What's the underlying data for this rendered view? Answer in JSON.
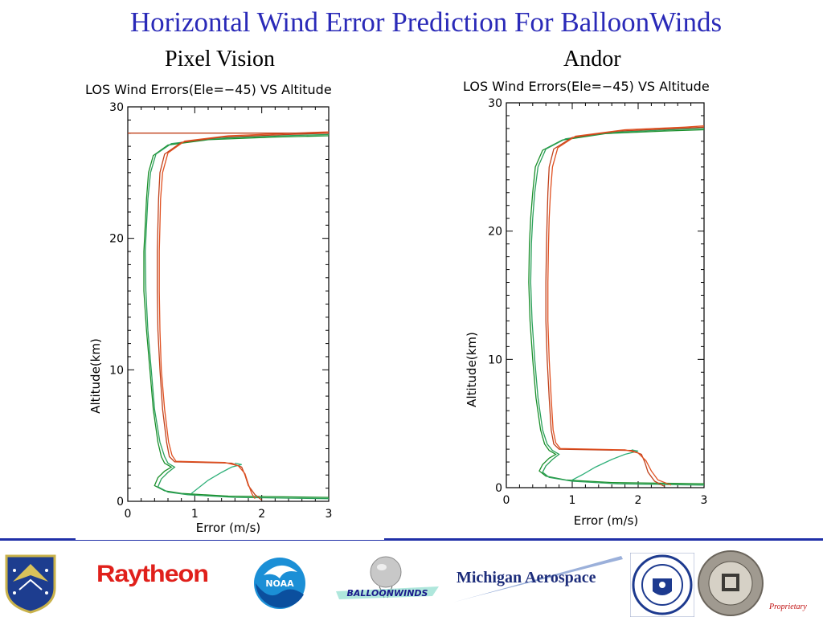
{
  "title": "Horizontal Wind Error Prediction For BalloonWinds",
  "panels": {
    "left_label": "Pixel Vision",
    "right_label": "Andor"
  },
  "chart_data": [
    {
      "type": "line",
      "title": "LOS Wind Errors(Ele=−45) VS Altitude",
      "xlabel": "Error (m/s)",
      "ylabel": "Altitude(km)",
      "xlim": [
        0,
        3
      ],
      "ylim": [
        0,
        30
      ],
      "xticks": [
        "0",
        "1",
        "2",
        "3"
      ],
      "yticks": [
        "0",
        "10",
        "20",
        "30"
      ],
      "grid": false,
      "series": [
        {
          "color": "#1a8f2a",
          "points": [
            [
              3.0,
              0.3
            ],
            [
              1.5,
              0.4
            ],
            [
              0.8,
              0.6
            ],
            [
              0.55,
              0.8
            ],
            [
              0.4,
              1.2
            ],
            [
              0.45,
              1.8
            ],
            [
              0.55,
              2.3
            ],
            [
              0.65,
              2.6
            ],
            [
              0.55,
              2.9
            ],
            [
              0.5,
              3.4
            ],
            [
              0.45,
              4.5
            ],
            [
              0.38,
              7
            ],
            [
              0.33,
              10
            ],
            [
              0.28,
              13
            ],
            [
              0.24,
              16
            ],
            [
              0.24,
              19
            ],
            [
              0.26,
              21
            ],
            [
              0.28,
              23
            ],
            [
              0.31,
              25
            ],
            [
              0.38,
              26.3
            ],
            [
              0.6,
              27.1
            ],
            [
              1.2,
              27.5
            ],
            [
              2.2,
              27.7
            ],
            [
              3.0,
              27.8
            ]
          ]
        },
        {
          "color": "#2aa05a",
          "points": [
            [
              3.0,
              0.2
            ],
            [
              1.6,
              0.3
            ],
            [
              0.9,
              0.5
            ],
            [
              0.6,
              0.7
            ],
            [
              0.45,
              1.1
            ],
            [
              0.5,
              1.7
            ],
            [
              0.6,
              2.2
            ],
            [
              0.7,
              2.6
            ],
            [
              0.6,
              2.9
            ],
            [
              0.55,
              3.4
            ],
            [
              0.48,
              4.5
            ],
            [
              0.4,
              7
            ],
            [
              0.35,
              10
            ],
            [
              0.3,
              13
            ],
            [
              0.27,
              16
            ],
            [
              0.26,
              19
            ],
            [
              0.28,
              21
            ],
            [
              0.3,
              23
            ],
            [
              0.34,
              25
            ],
            [
              0.42,
              26.4
            ],
            [
              0.65,
              27.2
            ],
            [
              1.3,
              27.6
            ],
            [
              2.3,
              27.8
            ],
            [
              3.0,
              27.9
            ]
          ]
        },
        {
          "color": "#30b07a",
          "points": [
            [
              0.95,
              0.6
            ],
            [
              1.05,
              1.0
            ],
            [
              1.2,
              1.6
            ],
            [
              1.4,
              2.2
            ],
            [
              1.55,
              2.6
            ],
            [
              1.7,
              2.8
            ],
            [
              1.6,
              2.9
            ]
          ]
        },
        {
          "color": "#c0401a",
          "points": [
            [
              2.0,
              0.1
            ],
            [
              1.9,
              0.5
            ],
            [
              1.8,
              1.2
            ],
            [
              1.75,
              2.0
            ],
            [
              1.7,
              2.6
            ],
            [
              1.55,
              2.9
            ],
            [
              0.7,
              3.0
            ],
            [
              0.62,
              3.4
            ],
            [
              0.58,
              4.5
            ],
            [
              0.52,
              7
            ],
            [
              0.48,
              10
            ],
            [
              0.45,
              13
            ],
            [
              0.44,
              16
            ],
            [
              0.44,
              19
            ],
            [
              0.45,
              21
            ],
            [
              0.46,
              23
            ],
            [
              0.48,
              25
            ],
            [
              0.55,
              26.4
            ],
            [
              0.8,
              27.3
            ],
            [
              1.4,
              27.7
            ],
            [
              2.4,
              27.9
            ],
            [
              3.0,
              28.0
            ]
          ]
        },
        {
          "color": "#e05020",
          "points": [
            [
              1.9,
              0.2
            ],
            [
              1.85,
              0.6
            ],
            [
              1.8,
              1.3
            ],
            [
              1.75,
              2.1
            ],
            [
              1.65,
              2.7
            ],
            [
              1.45,
              2.95
            ],
            [
              0.72,
              3.05
            ],
            [
              0.66,
              3.5
            ],
            [
              0.61,
              4.5
            ],
            [
              0.55,
              7
            ],
            [
              0.5,
              10
            ],
            [
              0.48,
              13
            ],
            [
              0.47,
              16
            ],
            [
              0.47,
              19
            ],
            [
              0.48,
              21
            ],
            [
              0.49,
              23
            ],
            [
              0.52,
              25
            ],
            [
              0.6,
              26.5
            ],
            [
              0.85,
              27.4
            ],
            [
              1.5,
              27.8
            ],
            [
              2.5,
              28.0
            ],
            [
              3.0,
              28.1
            ]
          ]
        },
        {
          "color": "#c0401a",
          "points": [
            [
              0.0,
              28.0
            ],
            [
              3.0,
              28.0
            ]
          ]
        }
      ]
    },
    {
      "type": "line",
      "title": "LOS Wind Errors(Ele=−45) VS Altitude",
      "xlabel": "Error (m/s)",
      "ylabel": "Altitude(km)",
      "xlim": [
        0,
        3
      ],
      "ylim": [
        0,
        30
      ],
      "xticks": [
        "0",
        "1",
        "2",
        "3"
      ],
      "yticks": [
        "0",
        "10",
        "20",
        "30"
      ],
      "grid": false,
      "series": [
        {
          "color": "#1a8f2a",
          "points": [
            [
              3.0,
              0.3
            ],
            [
              1.6,
              0.4
            ],
            [
              0.9,
              0.6
            ],
            [
              0.6,
              0.9
            ],
            [
              0.5,
              1.3
            ],
            [
              0.55,
              1.8
            ],
            [
              0.65,
              2.3
            ],
            [
              0.75,
              2.6
            ],
            [
              0.65,
              2.9
            ],
            [
              0.58,
              3.4
            ],
            [
              0.52,
              4.5
            ],
            [
              0.45,
              7
            ],
            [
              0.4,
              10
            ],
            [
              0.36,
              13
            ],
            [
              0.34,
              16
            ],
            [
              0.35,
              19
            ],
            [
              0.37,
              21
            ],
            [
              0.4,
              23
            ],
            [
              0.44,
              25
            ],
            [
              0.55,
              26.3
            ],
            [
              0.85,
              27.1
            ],
            [
              1.5,
              27.6
            ],
            [
              2.4,
              27.8
            ],
            [
              3.0,
              27.9
            ]
          ]
        },
        {
          "color": "#2aa05a",
          "points": [
            [
              3.0,
              0.2
            ],
            [
              1.7,
              0.3
            ],
            [
              1.0,
              0.5
            ],
            [
              0.65,
              0.8
            ],
            [
              0.55,
              1.2
            ],
            [
              0.6,
              1.7
            ],
            [
              0.7,
              2.2
            ],
            [
              0.8,
              2.6
            ],
            [
              0.7,
              2.9
            ],
            [
              0.62,
              3.4
            ],
            [
              0.55,
              4.5
            ],
            [
              0.48,
              7
            ],
            [
              0.43,
              10
            ],
            [
              0.39,
              13
            ],
            [
              0.37,
              16
            ],
            [
              0.38,
              19
            ],
            [
              0.4,
              21
            ],
            [
              0.43,
              23
            ],
            [
              0.48,
              25
            ],
            [
              0.6,
              26.4
            ],
            [
              0.9,
              27.2
            ],
            [
              1.6,
              27.7
            ],
            [
              2.5,
              27.9
            ],
            [
              3.0,
              28.0
            ]
          ]
        },
        {
          "color": "#30b07a",
          "points": [
            [
              1.0,
              0.6
            ],
            [
              1.15,
              1.0
            ],
            [
              1.35,
              1.6
            ],
            [
              1.6,
              2.2
            ],
            [
              1.8,
              2.6
            ],
            [
              2.0,
              2.85
            ],
            [
              1.9,
              2.95
            ]
          ]
        },
        {
          "color": "#c0401a",
          "points": [
            [
              2.4,
              0.1
            ],
            [
              2.25,
              0.5
            ],
            [
              2.15,
              1.2
            ],
            [
              2.1,
              2.0
            ],
            [
              2.05,
              2.6
            ],
            [
              1.9,
              2.9
            ],
            [
              0.8,
              3.0
            ],
            [
              0.72,
              3.4
            ],
            [
              0.68,
              4.5
            ],
            [
              0.65,
              7
            ],
            [
              0.62,
              10
            ],
            [
              0.6,
              13
            ],
            [
              0.6,
              16
            ],
            [
              0.61,
              19
            ],
            [
              0.62,
              21
            ],
            [
              0.63,
              23
            ],
            [
              0.65,
              25
            ],
            [
              0.72,
              26.4
            ],
            [
              1.0,
              27.3
            ],
            [
              1.7,
              27.8
            ],
            [
              2.6,
              28.0
            ],
            [
              3.0,
              28.1
            ]
          ]
        },
        {
          "color": "#e05020",
          "points": [
            [
              2.5,
              0.2
            ],
            [
              2.3,
              0.6
            ],
            [
              2.2,
              1.3
            ],
            [
              2.12,
              2.1
            ],
            [
              2.0,
              2.7
            ],
            [
              1.8,
              2.95
            ],
            [
              0.82,
              3.05
            ],
            [
              0.75,
              3.5
            ],
            [
              0.71,
              4.5
            ],
            [
              0.68,
              7
            ],
            [
              0.65,
              10
            ],
            [
              0.63,
              13
            ],
            [
              0.63,
              16
            ],
            [
              0.64,
              19
            ],
            [
              0.65,
              21
            ],
            [
              0.67,
              23
            ],
            [
              0.7,
              25
            ],
            [
              0.78,
              26.5
            ],
            [
              1.05,
              27.4
            ],
            [
              1.8,
              27.9
            ],
            [
              2.7,
              28.1
            ],
            [
              3.0,
              28.2
            ]
          ]
        }
      ]
    }
  ],
  "footer": {
    "logos": {
      "afrl": "air-force-research-laboratory-logo",
      "raytheon_text": "Raytheon",
      "noaa_text": "NOAA",
      "balloonwinds_text": "BALLOONWINDS",
      "michigan_text": "Michigan Aerospace",
      "unh": "university-of-new-hampshire-seal",
      "hawaii": "university-of-hawaii-seal"
    },
    "proprietary": "Proprietary"
  }
}
